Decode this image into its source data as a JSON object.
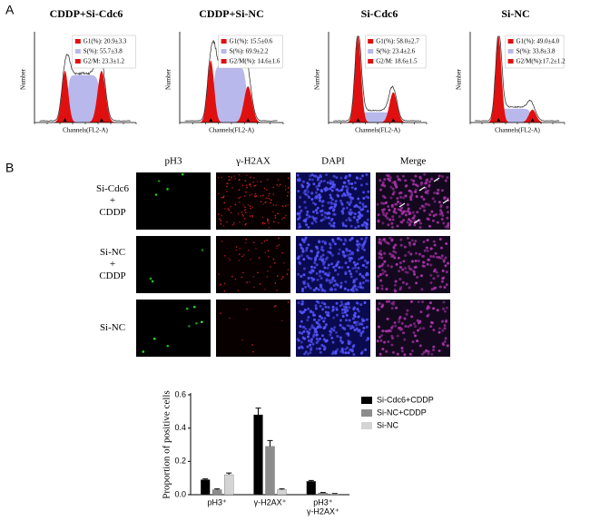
{
  "panel_a": {
    "label": "A",
    "histograms": [
      {
        "title": "CDDP+Si-Cdc6",
        "y_label": "Number",
        "x_label": "Channels(FL2-A)",
        "legend": [
          "G1(%): 20.9±3.3",
          "S(%): 55.7±3.8",
          "G2/M: 23.3±1.2"
        ]
      },
      {
        "title": "CDDP+Si-NC",
        "y_label": "Number",
        "x_label": "Channels(FL2-A)",
        "legend": [
          "G1(%): 15.5±0.6",
          "S(%): 69.9±2.2",
          "G2/M(%): 14.6±1.6"
        ]
      },
      {
        "title": "Si-Cdc6",
        "y_label": "Number",
        "x_label": "Channels(FL2-A)",
        "legend": [
          "G1(%): 58.0±2.7",
          "S(%): 23.4±2.6",
          "G2/M: 18.6±1.5"
        ]
      },
      {
        "title": "Si-NC",
        "y_label": "Number",
        "x_label": "Channels(FL2-A)",
        "legend": [
          "G1(%): 49.0±4.0",
          "S(%): 33.8±3.8",
          "G2/M(%):17.2±1.2"
        ]
      }
    ]
  },
  "panel_b": {
    "label": "B",
    "columns": [
      "pH3",
      "γ-H2AX",
      "DAPI",
      "Merge"
    ],
    "rows": [
      [
        "Si-Cdc6",
        "+",
        "CDDP"
      ],
      [
        "Si-NC",
        "+",
        "CDDP"
      ],
      [
        "Si-NC"
      ]
    ]
  },
  "chart_data": {
    "type": "bar",
    "y_label": "Proportion of positive cells",
    "categories": [
      [
        "pH3⁺"
      ],
      [
        "γ-H2AX⁺"
      ],
      [
        "pH3⁺",
        "γ-H2AX⁺"
      ]
    ],
    "series": [
      {
        "name": "Si-Cdc6+CDDP",
        "color": "#000000",
        "values": [
          0.09,
          0.48,
          0.08
        ],
        "errors": [
          0.005,
          0.04,
          0.005
        ]
      },
      {
        "name": "Si-NC+CDDP",
        "color": "#8c8c8c",
        "values": [
          0.03,
          0.29,
          0.01
        ],
        "errors": [
          0.005,
          0.035,
          0.003
        ]
      },
      {
        "name": "Si-NC",
        "color": "#d4d4d4",
        "values": [
          0.12,
          0.03,
          0.005
        ],
        "errors": [
          0.01,
          0.005,
          0.002
        ]
      }
    ],
    "ylim": [
      0,
      0.6
    ],
    "yticks": [
      {
        "value": 0,
        "label": "0.0"
      },
      {
        "value": 0.2,
        "label": "0.2"
      },
      {
        "value": 0.4,
        "label": "0.4"
      },
      {
        "value": 0.6,
        "label": "0.6"
      }
    ],
    "legend": "right"
  }
}
